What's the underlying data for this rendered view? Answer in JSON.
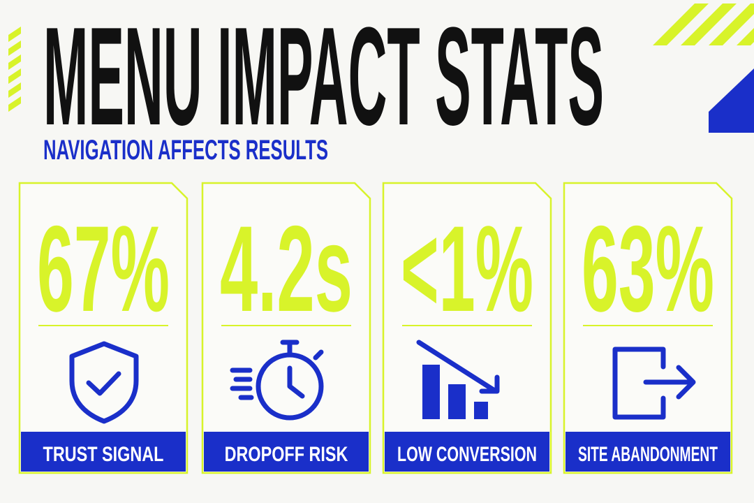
{
  "header": {
    "title": "MENU IMPACT STATS",
    "subtitle": "NAVIGATION AFFECTS RESULTS"
  },
  "cards": [
    {
      "value": "67%",
      "label": "TRUST SIGNAL"
    },
    {
      "value": "4.2s",
      "label": "DROPOFF RISK"
    },
    {
      "value": "<1%",
      "label": "LOW CONVERSION"
    },
    {
      "value": "63%",
      "label": "SITE ABANDONMENT"
    }
  ]
}
